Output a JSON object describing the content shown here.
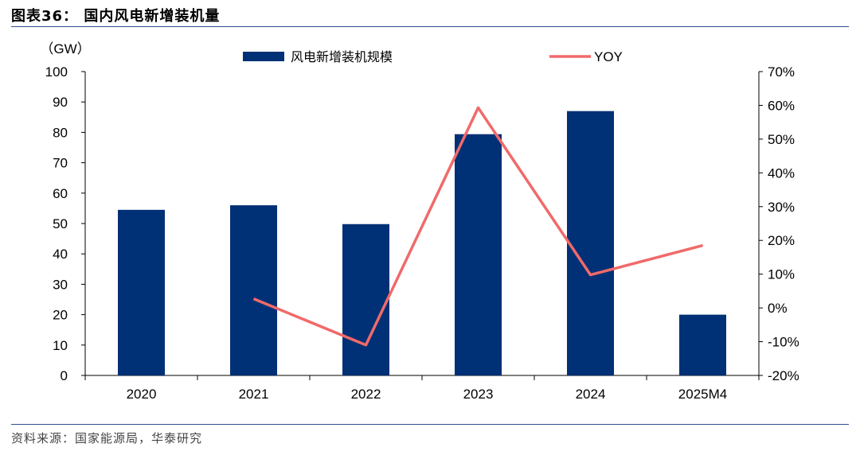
{
  "figure": {
    "title": "图表36：  国内风电新增装机量",
    "source": "资料来源：国家能源局，华泰研究"
  },
  "colors": {
    "bar": "#003075",
    "line": "#f06a6a",
    "rule": "#2f4f8f"
  },
  "chart_data": {
    "type": "bar",
    "categories": [
      "2020",
      "2021",
      "2022",
      "2023",
      "2024",
      "2025M4"
    ],
    "series": [
      {
        "name": "风电新增装机规模",
        "type": "bar",
        "axis": "left",
        "values": [
          54.5,
          56,
          49.8,
          79.4,
          87,
          20
        ]
      },
      {
        "name": "YOY",
        "type": "line",
        "axis": "right",
        "values": [
          null,
          2.7,
          -11,
          59.3,
          9.8,
          18.5
        ]
      }
    ],
    "ylabel_left": "（GW）",
    "ylim_left": [
      0,
      100
    ],
    "yticks_left": [
      "0",
      "10",
      "20",
      "30",
      "40",
      "50",
      "60",
      "70",
      "80",
      "90",
      "100"
    ],
    "ylim_right": [
      -20,
      70
    ],
    "yticks_right": [
      "-20%",
      "-10%",
      "0%",
      "10%",
      "20%",
      "30%",
      "40%",
      "50%",
      "60%",
      "70%"
    ],
    "legend_position": "top",
    "grid": false
  }
}
